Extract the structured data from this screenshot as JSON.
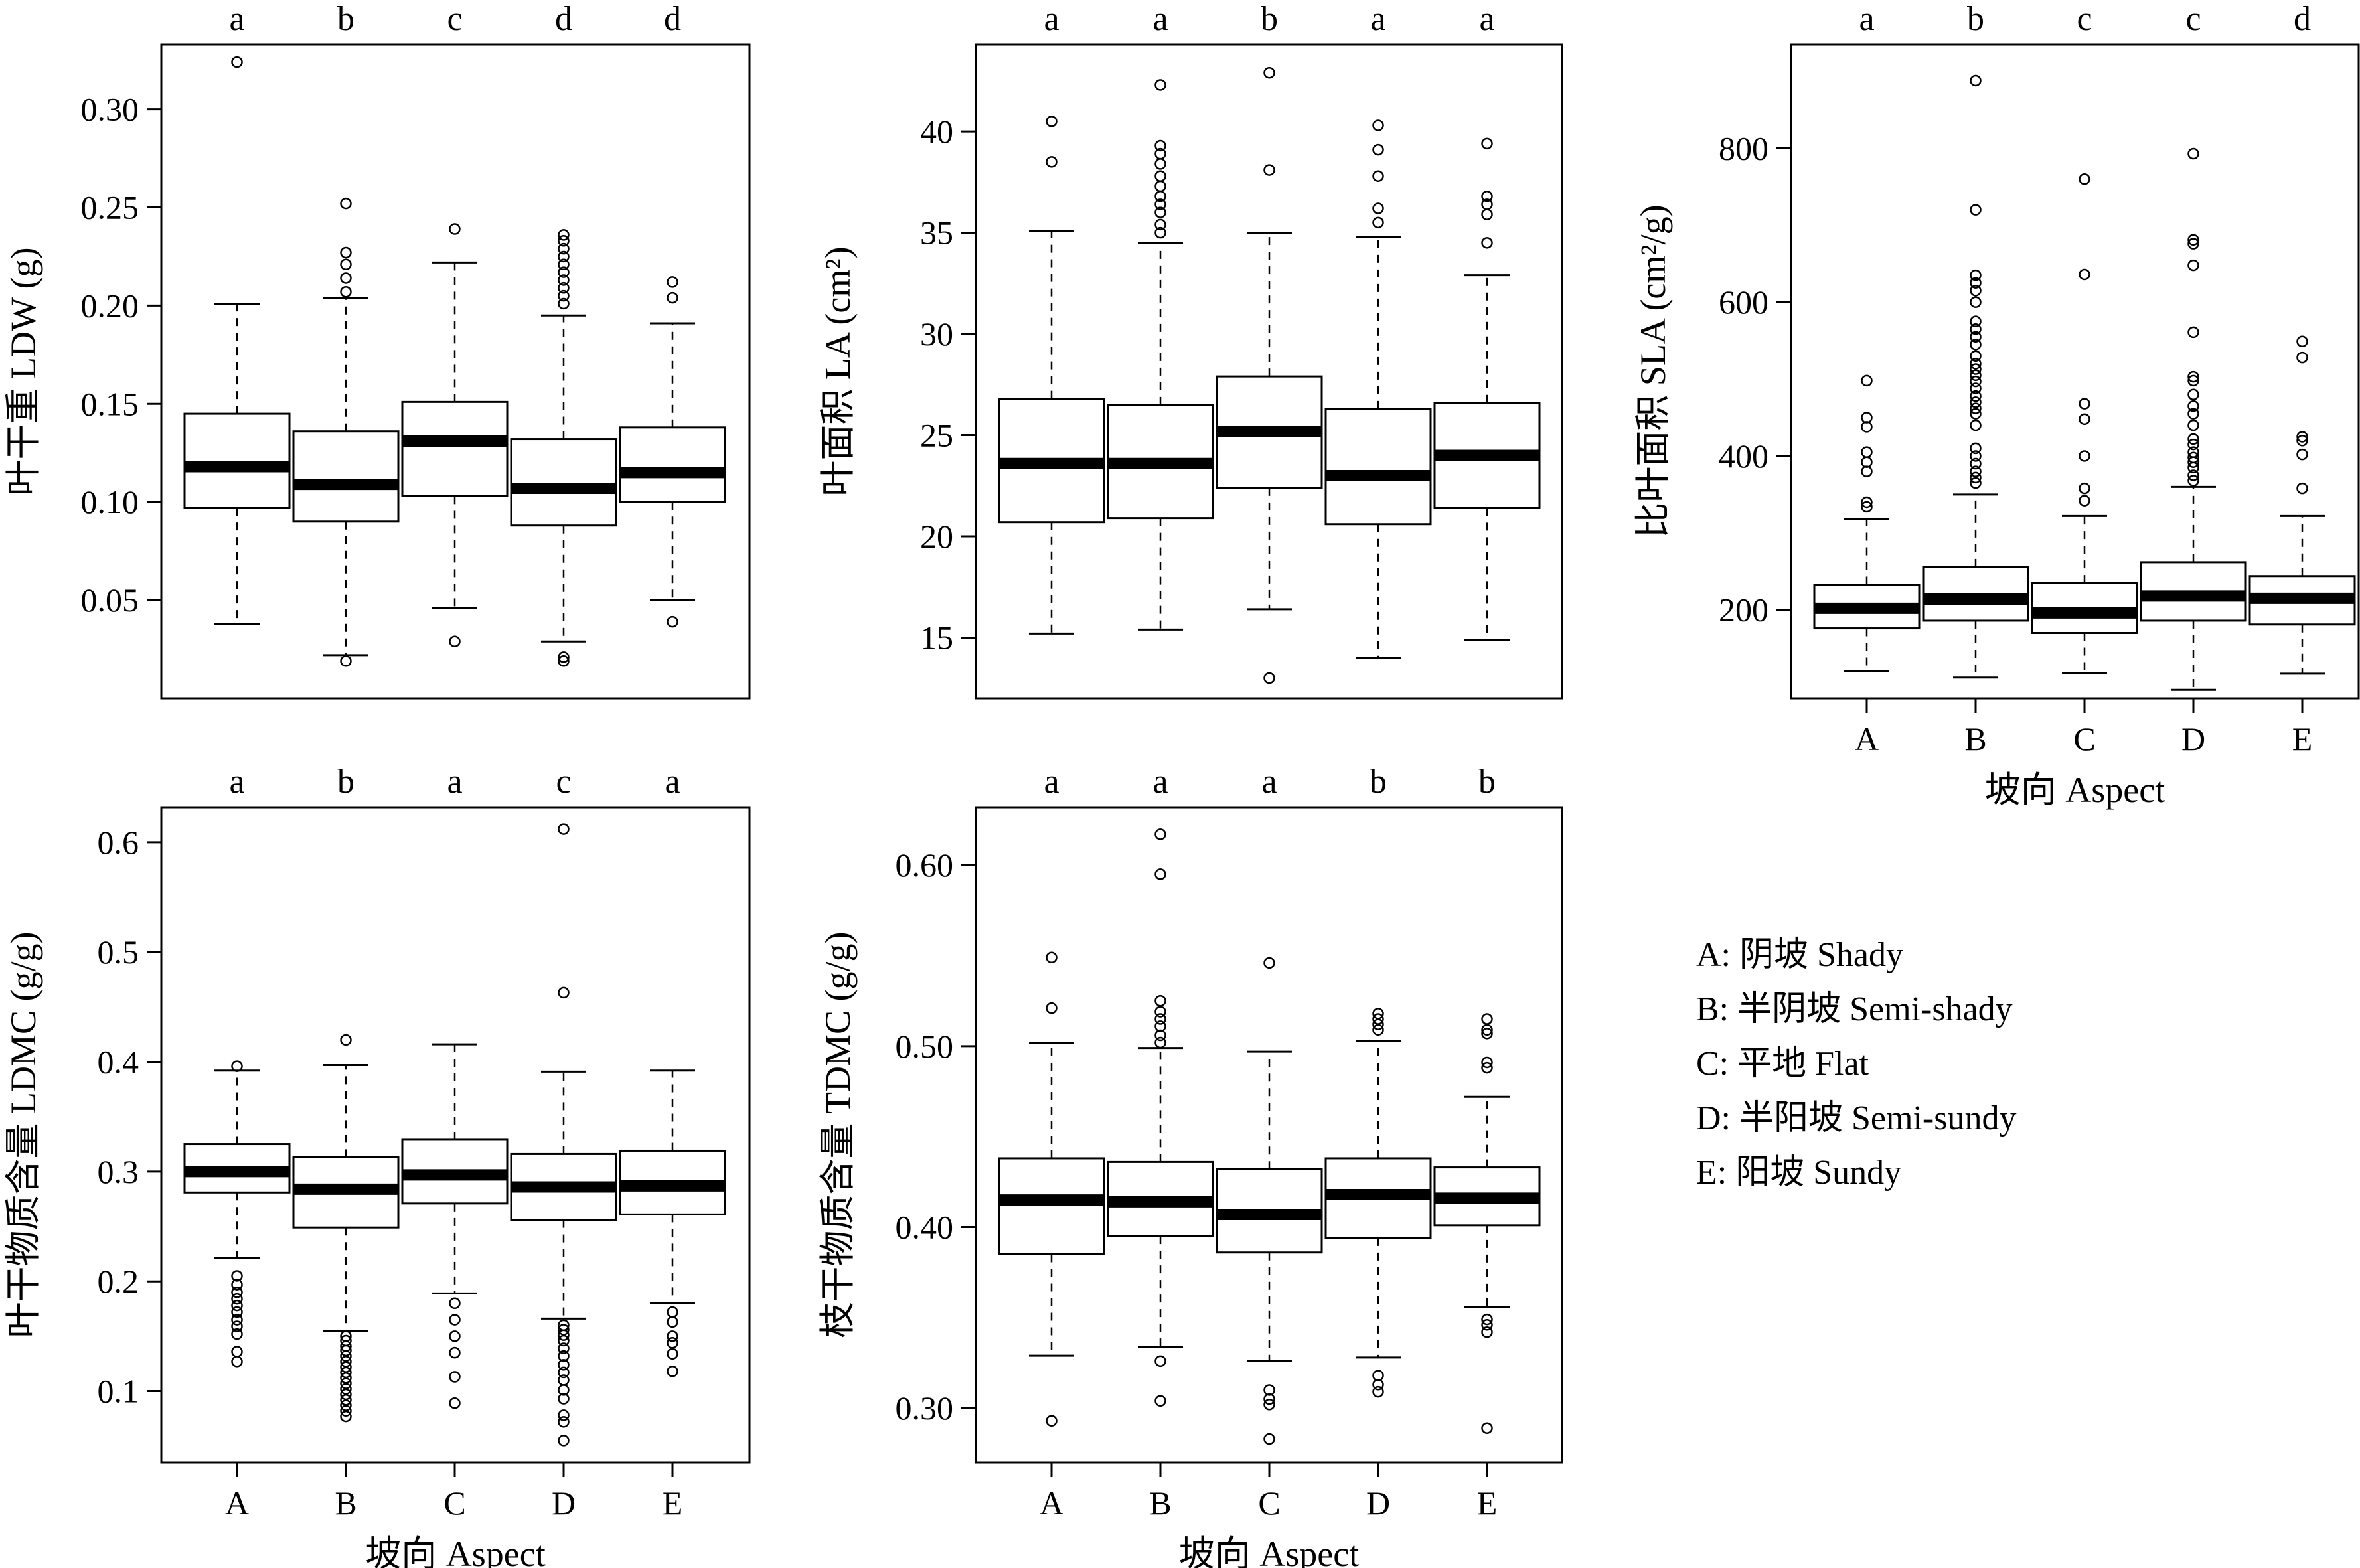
{
  "chart_data": [
    {
      "id": "ldw",
      "type": "box",
      "ylabel": "叶干重 LDW (g)",
      "xlabel": "",
      "categories": [
        "A",
        "B",
        "C",
        "D",
        "E"
      ],
      "show_x_ticks": false,
      "ylim": [
        0.0,
        0.333
      ],
      "yticks": [
        0.05,
        0.1,
        0.15,
        0.2,
        0.25,
        0.3
      ],
      "ytick_labels": [
        "0.05",
        "0.10",
        "0.15",
        "0.20",
        "0.25",
        "0.30"
      ],
      "group_letters": [
        "a",
        "b",
        "c",
        "d",
        "d"
      ],
      "boxes": [
        {
          "category": "A",
          "whisker_low": 0.038,
          "q1": 0.097,
          "median": 0.118,
          "q3": 0.145,
          "whisker_high": 0.201,
          "outliers": [
            0.324
          ]
        },
        {
          "category": "B",
          "whisker_low": 0.022,
          "q1": 0.09,
          "median": 0.109,
          "q3": 0.136,
          "whisker_high": 0.204,
          "outliers": [
            0.019,
            0.207,
            0.214,
            0.221,
            0.227,
            0.252
          ]
        },
        {
          "category": "C",
          "whisker_low": 0.046,
          "q1": 0.103,
          "median": 0.131,
          "q3": 0.151,
          "whisker_high": 0.222,
          "outliers": [
            0.029,
            0.239
          ]
        },
        {
          "category": "D",
          "whisker_low": 0.029,
          "q1": 0.088,
          "median": 0.107,
          "q3": 0.132,
          "whisker_high": 0.195,
          "outliers": [
            0.019,
            0.021,
            0.201,
            0.205,
            0.209,
            0.213,
            0.217,
            0.221,
            0.225,
            0.229,
            0.233,
            0.236
          ]
        },
        {
          "category": "E",
          "whisker_low": 0.05,
          "q1": 0.1,
          "median": 0.115,
          "q3": 0.138,
          "whisker_high": 0.191,
          "outliers": [
            0.039,
            0.204,
            0.212
          ]
        }
      ]
    },
    {
      "id": "la",
      "type": "box",
      "ylabel": "叶面积 LA (cm²)",
      "xlabel": "",
      "categories": [
        "A",
        "B",
        "C",
        "D",
        "E"
      ],
      "show_x_ticks": false,
      "ylim": [
        12.0,
        44.3
      ],
      "yticks": [
        15,
        20,
        25,
        30,
        35,
        40
      ],
      "ytick_labels": [
        "15",
        "20",
        "25",
        "30",
        "35",
        "40"
      ],
      "group_letters": [
        "a",
        "a",
        "b",
        "a",
        "a"
      ],
      "boxes": [
        {
          "category": "A",
          "whisker_low": 15.2,
          "q1": 20.7,
          "median": 23.6,
          "q3": 26.8,
          "whisker_high": 35.1,
          "outliers": [
            38.5,
            40.5
          ]
        },
        {
          "category": "B",
          "whisker_low": 15.4,
          "q1": 20.9,
          "median": 23.6,
          "q3": 26.5,
          "whisker_high": 34.5,
          "outliers": [
            35.0,
            35.4,
            36.0,
            36.4,
            36.8,
            37.3,
            37.8,
            38.4,
            38.9,
            39.3,
            42.3
          ]
        },
        {
          "category": "C",
          "whisker_low": 16.4,
          "q1": 22.4,
          "median": 25.2,
          "q3": 27.9,
          "whisker_high": 35.0,
          "outliers": [
            13.0,
            38.1,
            42.9
          ]
        },
        {
          "category": "D",
          "whisker_low": 14.0,
          "q1": 20.6,
          "median": 23.0,
          "q3": 26.3,
          "whisker_high": 34.8,
          "outliers": [
            35.5,
            36.2,
            37.8,
            39.1,
            40.3
          ]
        },
        {
          "category": "E",
          "whisker_low": 14.9,
          "q1": 21.4,
          "median": 24.0,
          "q3": 26.6,
          "whisker_high": 32.9,
          "outliers": [
            34.5,
            35.9,
            36.4,
            36.8,
            39.4
          ]
        }
      ]
    },
    {
      "id": "sla",
      "type": "box",
      "ylabel": "比叶面积 SLA (cm²/g)",
      "xlabel": "坡向 Aspect",
      "categories": [
        "A",
        "B",
        "C",
        "D",
        "E"
      ],
      "show_x_ticks": true,
      "ylim": [
        85,
        935
      ],
      "yticks": [
        200,
        400,
        600,
        800
      ],
      "ytick_labels": [
        "200",
        "400",
        "600",
        "800"
      ],
      "group_letters": [
        "a",
        "b",
        "c",
        "c",
        "d"
      ],
      "boxes": [
        {
          "category": "A",
          "whisker_low": 120,
          "q1": 176,
          "median": 202,
          "q3": 233,
          "whisker_high": 318,
          "outliers": [
            334,
            340,
            380,
            392,
            405,
            438,
            450,
            498
          ]
        },
        {
          "category": "B",
          "whisker_low": 112,
          "q1": 186,
          "median": 214,
          "q3": 256,
          "whisker_high": 350,
          "outliers": [
            365,
            372,
            380,
            390,
            400,
            410,
            440,
            455,
            462,
            470,
            478,
            488,
            497,
            505,
            513,
            520,
            530,
            545,
            555,
            565,
            575,
            600,
            615,
            625,
            635,
            720,
            888
          ]
        },
        {
          "category": "C",
          "whisker_low": 118,
          "q1": 170,
          "median": 196,
          "q3": 235,
          "whisker_high": 322,
          "outliers": [
            342,
            358,
            400,
            448,
            468,
            636,
            760
          ]
        },
        {
          "category": "D",
          "whisker_low": 96,
          "q1": 186,
          "median": 218,
          "q3": 262,
          "whisker_high": 360,
          "outliers": [
            368,
            375,
            385,
            392,
            398,
            405,
            415,
            422,
            440,
            455,
            465,
            480,
            498,
            503,
            561,
            648,
            676,
            681,
            793
          ]
        },
        {
          "category": "E",
          "whisker_low": 117,
          "q1": 181,
          "median": 215,
          "q3": 244,
          "whisker_high": 322,
          "outliers": [
            358,
            402,
            420,
            425,
            528,
            549
          ]
        }
      ]
    },
    {
      "id": "ldmc",
      "type": "box",
      "ylabel": "叶干物质含量 LDMC (g/g)",
      "xlabel": "坡向 Aspect",
      "categories": [
        "A",
        "B",
        "C",
        "D",
        "E"
      ],
      "show_x_ticks": true,
      "ylim": [
        0.035,
        0.632
      ],
      "yticks": [
        0.1,
        0.2,
        0.3,
        0.4,
        0.5,
        0.6
      ],
      "ytick_labels": [
        "0.1",
        "0.2",
        "0.3",
        "0.4",
        "0.5",
        "0.6"
      ],
      "group_letters": [
        "a",
        "b",
        "a",
        "c",
        "a"
      ],
      "boxes": [
        {
          "category": "A",
          "whisker_low": 0.221,
          "q1": 0.281,
          "median": 0.3,
          "q3": 0.325,
          "whisker_high": 0.392,
          "outliers": [
            0.127,
            0.136,
            0.152,
            0.159,
            0.165,
            0.172,
            0.178,
            0.184,
            0.19,
            0.197,
            0.205,
            0.396
          ]
        },
        {
          "category": "B",
          "whisker_low": 0.155,
          "q1": 0.249,
          "median": 0.284,
          "q3": 0.313,
          "whisker_high": 0.397,
          "outliers": [
            0.077,
            0.082,
            0.087,
            0.092,
            0.097,
            0.102,
            0.107,
            0.112,
            0.117,
            0.122,
            0.127,
            0.132,
            0.137,
            0.141,
            0.146,
            0.15,
            0.42
          ]
        },
        {
          "category": "C",
          "whisker_low": 0.189,
          "q1": 0.271,
          "median": 0.297,
          "q3": 0.329,
          "whisker_high": 0.416,
          "outliers": [
            0.089,
            0.113,
            0.135,
            0.15,
            0.165,
            0.18
          ]
        },
        {
          "category": "D",
          "whisker_low": 0.166,
          "q1": 0.256,
          "median": 0.286,
          "q3": 0.316,
          "whisker_high": 0.391,
          "outliers": [
            0.055,
            0.072,
            0.078,
            0.093,
            0.101,
            0.11,
            0.117,
            0.124,
            0.132,
            0.139,
            0.146,
            0.151,
            0.156,
            0.16,
            0.463,
            0.612
          ]
        },
        {
          "category": "E",
          "whisker_low": 0.18,
          "q1": 0.261,
          "median": 0.287,
          "q3": 0.319,
          "whisker_high": 0.392,
          "outliers": [
            0.118,
            0.134,
            0.144,
            0.15,
            0.163,
            0.172
          ]
        }
      ]
    },
    {
      "id": "tdmc",
      "type": "box",
      "ylabel": "枝干物质含量 TDMC (g/g)",
      "xlabel": "坡向 Aspect",
      "categories": [
        "A",
        "B",
        "C",
        "D",
        "E"
      ],
      "show_x_ticks": true,
      "ylim": [
        0.27,
        0.632
      ],
      "yticks": [
        0.3,
        0.4,
        0.5,
        0.6
      ],
      "ytick_labels": [
        "0.30",
        "0.40",
        "0.50",
        "0.60"
      ],
      "group_letters": [
        "a",
        "a",
        "a",
        "b",
        "b"
      ],
      "boxes": [
        {
          "category": "A",
          "whisker_low": 0.329,
          "q1": 0.385,
          "median": 0.415,
          "q3": 0.438,
          "whisker_high": 0.502,
          "outliers": [
            0.293,
            0.521,
            0.549
          ]
        },
        {
          "category": "B",
          "whisker_low": 0.334,
          "q1": 0.395,
          "median": 0.414,
          "q3": 0.436,
          "whisker_high": 0.499,
          "outliers": [
            0.304,
            0.326,
            0.502,
            0.506,
            0.511,
            0.515,
            0.519,
            0.525,
            0.595,
            0.617
          ]
        },
        {
          "category": "C",
          "whisker_low": 0.326,
          "q1": 0.386,
          "median": 0.407,
          "q3": 0.432,
          "whisker_high": 0.497,
          "outliers": [
            0.283,
            0.302,
            0.305,
            0.31,
            0.546
          ]
        },
        {
          "category": "D",
          "whisker_low": 0.328,
          "q1": 0.394,
          "median": 0.418,
          "q3": 0.438,
          "whisker_high": 0.503,
          "outliers": [
            0.309,
            0.313,
            0.318,
            0.509,
            0.512,
            0.515,
            0.518
          ]
        },
        {
          "category": "E",
          "whisker_low": 0.356,
          "q1": 0.401,
          "median": 0.416,
          "q3": 0.433,
          "whisker_high": 0.472,
          "outliers": [
            0.289,
            0.342,
            0.346,
            0.349,
            0.488,
            0.491,
            0.507,
            0.509,
            0.515
          ]
        }
      ]
    }
  ],
  "legend": {
    "items": [
      "A: 阴坡 Shady",
      "B: 半阴坡 Semi-shady",
      "C: 平地 Flat",
      "D: 半阳坡 Semi-sundy",
      "E: 阳坡 Sundy"
    ]
  },
  "colors": {
    "ink": "#000000",
    "background": "#ffffff"
  }
}
